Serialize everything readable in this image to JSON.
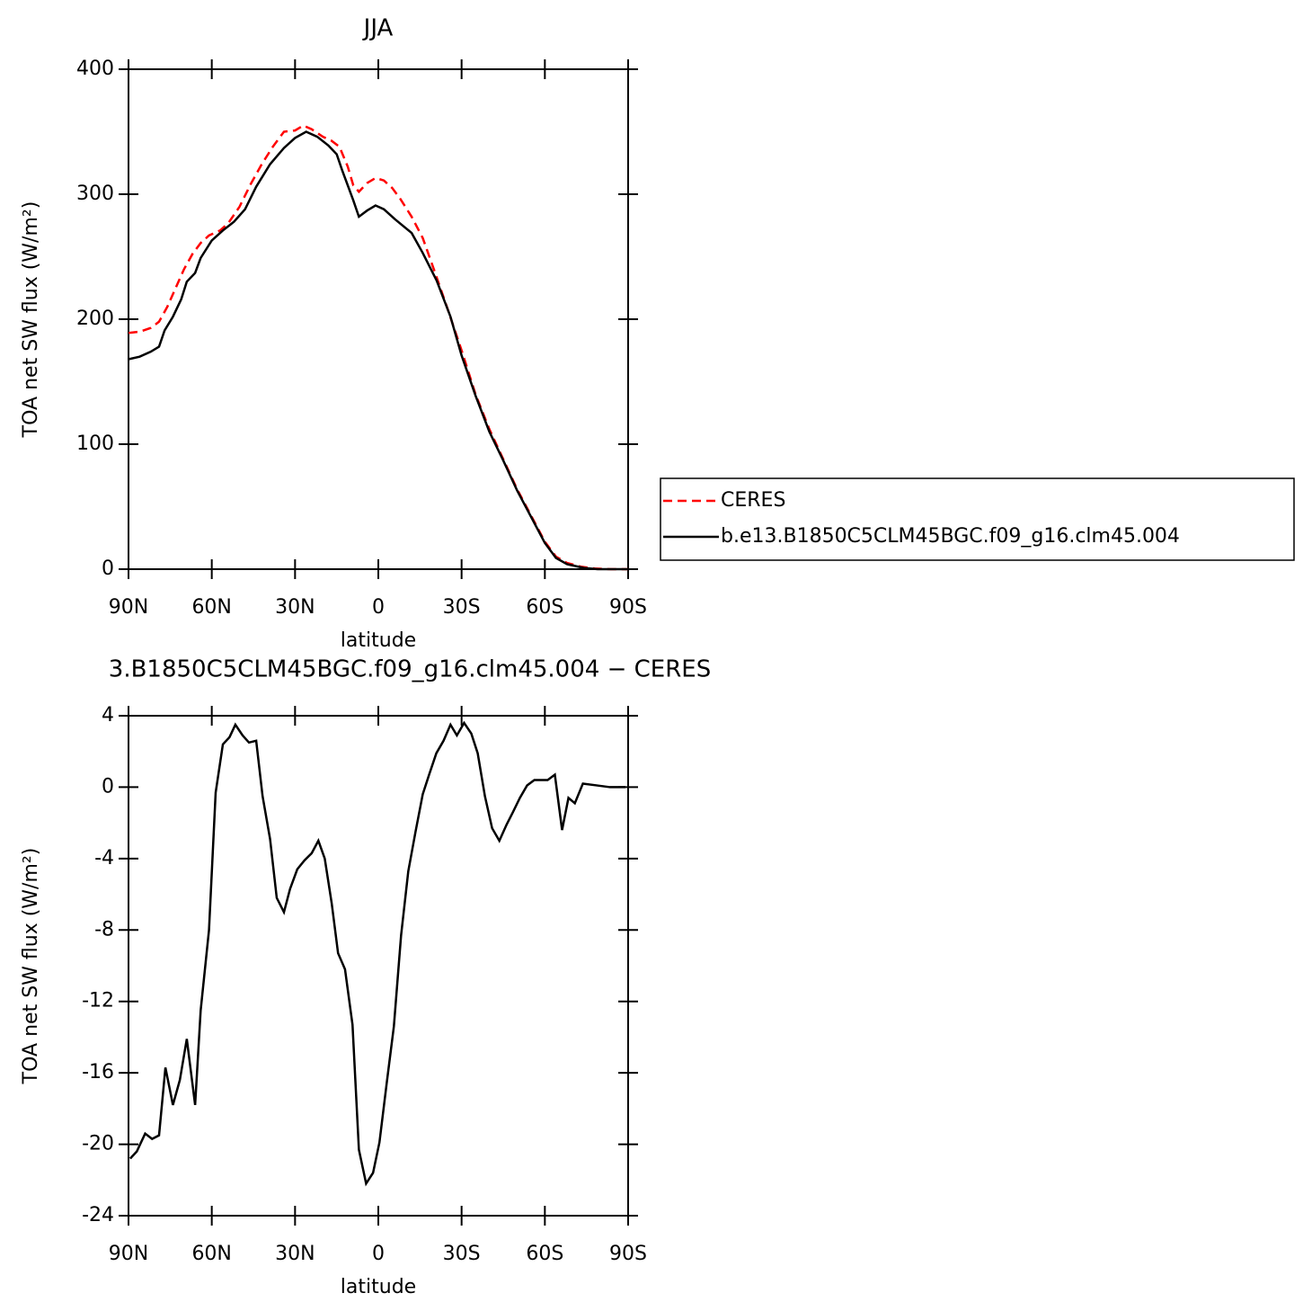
{
  "chart_data": [
    {
      "type": "line",
      "title": "JJA",
      "x_label": "latitude",
      "y_label": "TOA net SW flux (W/m²)",
      "xlim": [
        90,
        -90
      ],
      "xticks": [
        {
          "value": 90,
          "label": "90N"
        },
        {
          "value": 60,
          "label": "60N"
        },
        {
          "value": 30,
          "label": "30N"
        },
        0,
        {
          "value": -30,
          "label": "30S"
        },
        {
          "value": -60,
          "label": "60S"
        },
        {
          "value": -90,
          "label": "90S"
        }
      ],
      "ylim": [
        0,
        400
      ],
      "yticks": [
        0,
        100,
        200,
        300,
        400
      ],
      "legend": "right",
      "series": [
        {
          "name": "CERES",
          "color": "#ff0000",
          "line_style": "dashed",
          "x": [
            90,
            86,
            82,
            79,
            76,
            73,
            70,
            67,
            64,
            61,
            57,
            54,
            50,
            46,
            42,
            38,
            34,
            30,
            27,
            24,
            20,
            17,
            14,
            11,
            9,
            7,
            4,
            1,
            -2,
            -5,
            -8,
            -12,
            -16,
            -20,
            -25,
            -30,
            -35,
            -40,
            -45,
            -50,
            -55,
            -60,
            -64,
            -68,
            -73,
            -78,
            -84,
            -90
          ],
          "values": [
            189,
            190,
            193,
            198,
            210,
            225,
            240,
            252,
            261,
            267,
            271,
            277,
            290,
            308,
            324,
            338,
            350,
            351,
            355,
            352,
            346,
            343,
            338,
            322,
            307,
            302,
            309,
            313,
            311,
            305,
            296,
            282,
            265,
            240,
            208,
            175,
            140,
            112,
            88,
            64,
            43,
            22,
            10,
            5,
            2,
            0.5,
            0,
            0
          ]
        },
        {
          "name": "b.e13.B1850C5CLM45BGC.f09_g16.clm45.004",
          "color": "#000000",
          "line_style": "solid",
          "x": [
            90,
            86,
            82,
            79,
            77,
            74,
            71,
            69,
            66,
            64,
            60,
            56,
            52,
            48,
            44,
            39,
            34,
            30,
            26,
            22,
            18,
            15,
            13,
            9,
            7,
            4,
            1,
            -2,
            -6,
            -12,
            -16,
            -21,
            -26,
            -30,
            -35,
            -40,
            -45,
            -50,
            -55,
            -60,
            -64,
            -68,
            -74,
            -79,
            -90
          ],
          "values": [
            168,
            170,
            174,
            178,
            191,
            202,
            216,
            230,
            237,
            249,
            263,
            271,
            278,
            288,
            306,
            324,
            337,
            345,
            350,
            346,
            339,
            332,
            319,
            295,
            282,
            287,
            291,
            288,
            280,
            269,
            253,
            231,
            202,
            171,
            139,
            110,
            87,
            63,
            42,
            21,
            9,
            4,
            1,
            0,
            0
          ]
        }
      ]
    },
    {
      "type": "line",
      "title": "3.B1850C5CLM45BGC.f09_g16.clm45.004 − CERES",
      "x_label": "latitude",
      "y_label": "TOA net SW flux (W/m²)",
      "xlim": [
        90,
        -90
      ],
      "xticks": [
        {
          "value": 90,
          "label": "90N"
        },
        {
          "value": 60,
          "label": "60N"
        },
        {
          "value": 30,
          "label": "30N"
        },
        0,
        {
          "value": -30,
          "label": "30S"
        },
        {
          "value": -60,
          "label": "60S"
        },
        {
          "value": -90,
          "label": "90S"
        }
      ],
      "ylim": [
        -24,
        4
      ],
      "yticks": [
        4,
        0,
        -4,
        -8,
        -12,
        -16,
        -20,
        -24
      ],
      "series": [
        {
          "color": "#000000",
          "line_style": "solid",
          "x": [
            89.4,
            87,
            84,
            81.5,
            79,
            76.7,
            74,
            71.5,
            69,
            66,
            64,
            61,
            58.6,
            56,
            53.6,
            51.5,
            48.9,
            46.6,
            44,
            41.7,
            39,
            36.6,
            34,
            31.8,
            29.2,
            26.6,
            24,
            21.6,
            19.3,
            16.8,
            14.5,
            12,
            9.3,
            7,
            4.4,
            1.9,
            -0.4,
            -3,
            -5.6,
            -8.2,
            -10.8,
            -13.4,
            -16,
            -18.3,
            -20.9,
            -23.5,
            -26,
            -28.3,
            -30.9,
            -33.5,
            -35.8,
            -38.4,
            -41,
            -43.6,
            -46.2,
            -48.5,
            -51,
            -53.6,
            -56.2,
            -58.8,
            -61,
            -63.6,
            -66.2,
            -68.5,
            -70.8,
            -73.7,
            -78.6,
            -83.5,
            -89
          ],
          "values": [
            -20.8,
            -20.4,
            -19.4,
            -19.7,
            -19.5,
            -15.7,
            -17.8,
            -16.4,
            -14.1,
            -17.8,
            -12.5,
            -8,
            -0.3,
            2.4,
            2.8,
            3.5,
            2.9,
            2.5,
            2.6,
            -0.5,
            -2.9,
            -6.2,
            -7,
            -5.7,
            -4.6,
            -4.1,
            -3.7,
            -3,
            -4,
            -6.5,
            -9.3,
            -10.2,
            -13.3,
            -20.3,
            -22.2,
            -21.6,
            -19.9,
            -16.6,
            -13.4,
            -8.3,
            -4.7,
            -2.5,
            -0.4,
            0.7,
            1.9,
            2.6,
            3.5,
            2.9,
            3.6,
            3,
            1.9,
            -0.5,
            -2.3,
            -3,
            -2.1,
            -1.4,
            -0.6,
            0.1,
            0.4,
            0.4,
            0.4,
            0.7,
            -2.4,
            -0.6,
            -0.9,
            0.2,
            0.1,
            0,
            0
          ]
        }
      ]
    }
  ]
}
